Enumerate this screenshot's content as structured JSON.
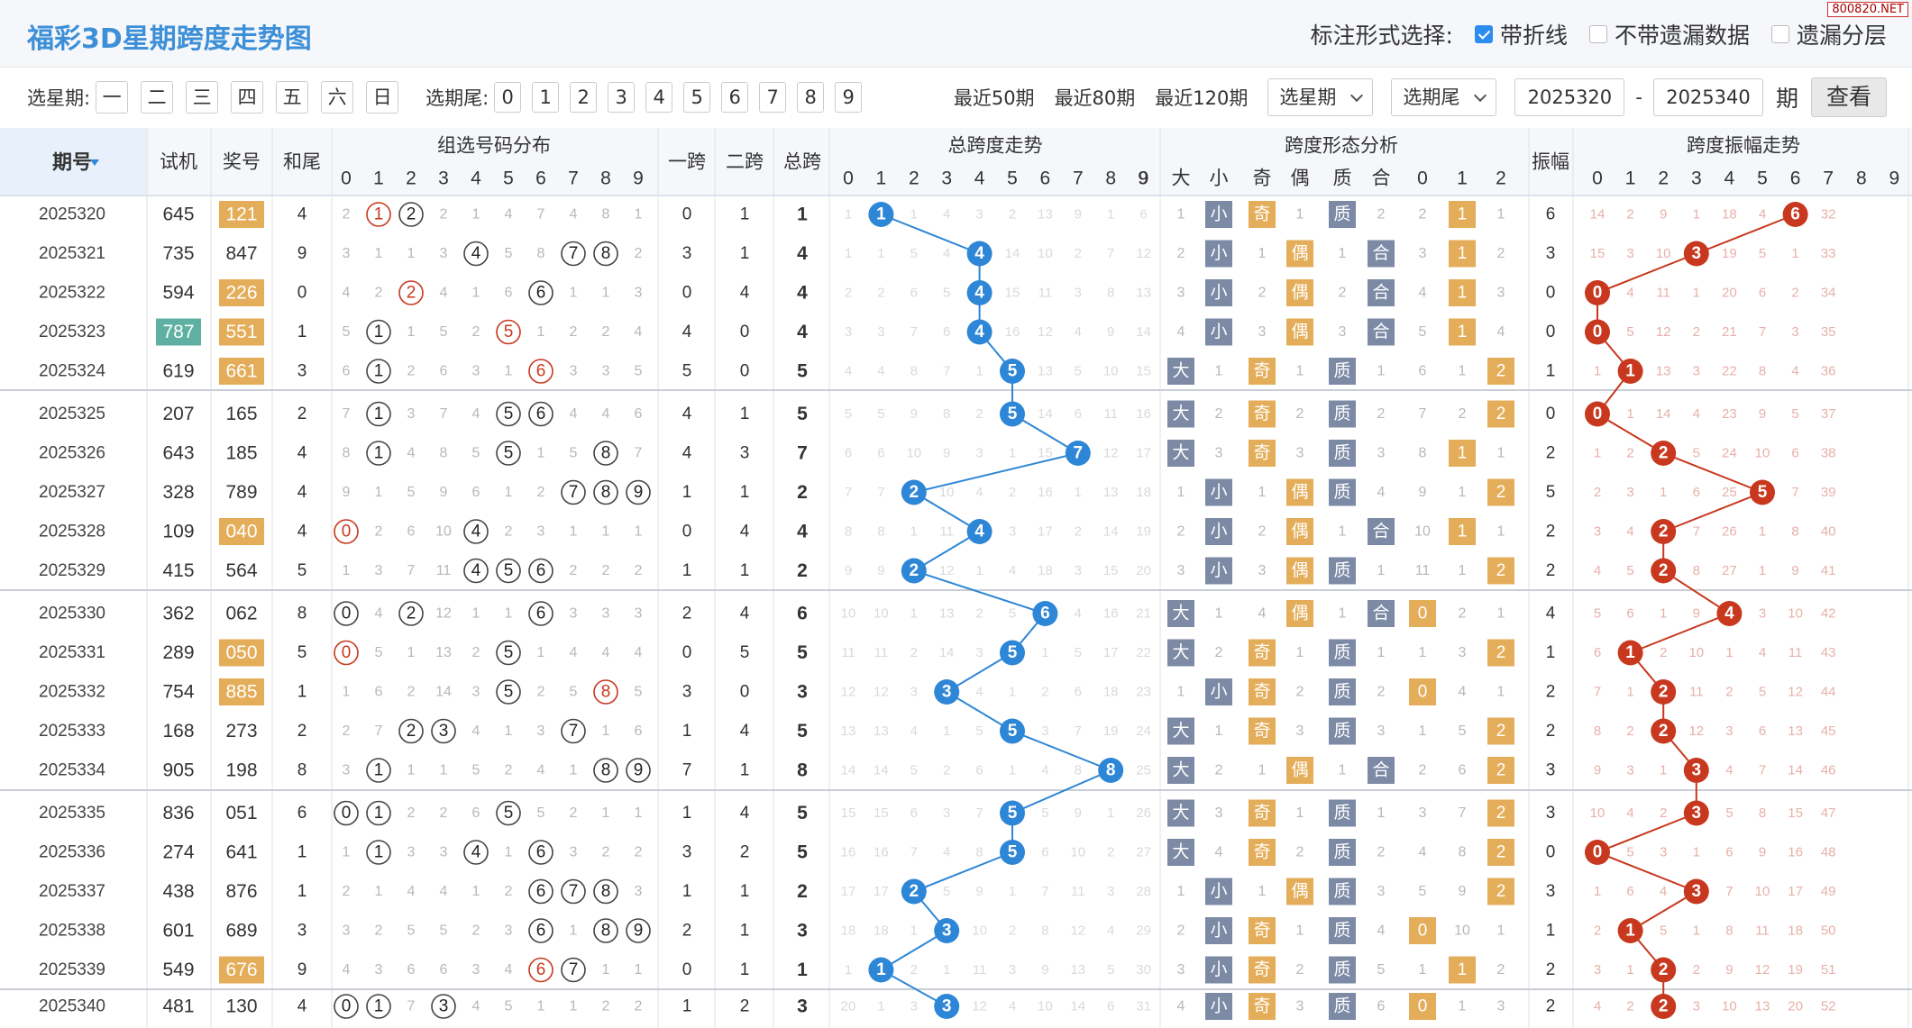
{
  "header": {
    "title": "福彩3D星期跨度走势图",
    "watermark": "800820.NET",
    "mark_label": "标注形式选择:",
    "opt_line": "带折线",
    "opt_nomiss": "不带遗漏数据",
    "opt_layer": "遗漏分层"
  },
  "filters": {
    "week_label": "选星期:",
    "weekdays": [
      "一",
      "二",
      "三",
      "四",
      "五",
      "六",
      "日"
    ],
    "tail_label": "选期尾:",
    "tails": [
      "0",
      "1",
      "2",
      "3",
      "4",
      "5",
      "6",
      "7",
      "8",
      "9"
    ],
    "recent50": "最近50期",
    "recent80": "最近80期",
    "recent120": "最近120期",
    "sel_week": "选星期",
    "sel_tail": "选期尾",
    "start": "2025320",
    "dash": "-",
    "end": "2025340",
    "period": "期",
    "query": "查看"
  },
  "columns": {
    "period": "期号",
    "test": "试机",
    "prize": "奖号",
    "hewei": "和尾",
    "group_dist": "组选号码分布",
    "span1": "一跨",
    "span2": "二跨",
    "total": "总跨",
    "total_trend": "总跨度走势",
    "shape": "跨度形态分析",
    "shape_sub": [
      "大",
      "小",
      "奇",
      "偶",
      "质",
      "合",
      "0",
      "1",
      "2"
    ],
    "amp": "振幅",
    "amp_trend": "跨度振幅走势",
    "digits": [
      "0",
      "1",
      "2",
      "3",
      "4",
      "5",
      "6",
      "7",
      "8",
      "9"
    ]
  },
  "colors": {
    "blue": "#2e86d6",
    "red": "#c8381e",
    "orange": "#e4ad5a",
    "teal": "#5fb0a2",
    "gray": "#7c8aa6",
    "header_bg": "#f5f7fa"
  },
  "rows": [
    {
      "p": "2025320",
      "t": "645",
      "z": "121",
      "zc": "o",
      "hw": 4,
      "d": [
        2,
        "R",
        2,
        "B",
        2,
        1,
        4,
        7,
        4,
        8,
        1
      ],
      "dist": [
        2,
        "R",
        2,
        2,
        1,
        4,
        7,
        4,
        8,
        1
      ],
      "dm": [
        [
          1,
          "R"
        ],
        [
          2,
          "B"
        ]
      ],
      "s1": 0,
      "s2": 1,
      "tot": 1,
      "tt": [
        1,
        1,
        1,
        4,
        3,
        2,
        13,
        9,
        1,
        6,
        11
      ],
      "shape": [
        1,
        "小",
        "奇",
        1,
        "质",
        2,
        2,
        "1",
        1
      ],
      "amp": 6,
      "at": [
        14,
        2,
        9,
        1,
        18,
        4,
        6,
        32,
        "",
        ""
      ]
    },
    {
      "p": "2025321",
      "t": "735",
      "z": "847",
      "zc": "",
      "hw": 9,
      "dist": [
        3,
        1,
        1,
        3,
        4,
        5,
        8,
        7,
        8,
        2
      ],
      "dm": [
        [
          4,
          "B"
        ],
        [
          7,
          "B"
        ],
        [
          8,
          "B"
        ]
      ],
      "s1": 3,
      "s2": 1,
      "tot": 4,
      "tt": [
        1,
        1,
        5,
        4,
        4,
        14,
        10,
        2,
        7,
        12
      ],
      "shape": [
        2,
        "小",
        1,
        "偶",
        1,
        "合",
        3,
        "1",
        2
      ],
      "amp": 3,
      "at": [
        15,
        3,
        10,
        3,
        19,
        5,
        1,
        33,
        "",
        ""
      ]
    },
    {
      "p": "2025322",
      "t": "594",
      "z": "226",
      "zc": "o",
      "hw": 0,
      "dist": [
        4,
        2,
        2,
        4,
        1,
        6,
        6,
        1,
        1,
        3
      ],
      "dm": [
        [
          2,
          "R"
        ],
        [
          6,
          "B"
        ]
      ],
      "s1": 0,
      "s2": 4,
      "tot": 4,
      "tt": [
        2,
        2,
        6,
        5,
        4,
        15,
        11,
        3,
        8,
        13
      ],
      "shape": [
        3,
        "小",
        2,
        "偶",
        2,
        "合",
        4,
        "1",
        3
      ],
      "amp": 0,
      "at": [
        0,
        4,
        11,
        1,
        20,
        6,
        2,
        34,
        "",
        ""
      ]
    },
    {
      "p": "2025323",
      "t": "787",
      "tc": "t",
      "z": "551",
      "zc": "o",
      "hw": 1,
      "dist": [
        5,
        1,
        1,
        5,
        2,
        5,
        1,
        2,
        2,
        4
      ],
      "dm": [
        [
          1,
          "B"
        ],
        [
          5,
          "R"
        ]
      ],
      "s1": 4,
      "s2": 0,
      "tot": 4,
      "tt": [
        3,
        3,
        7,
        6,
        4,
        16,
        12,
        4,
        9,
        14
      ],
      "shape": [
        4,
        "小",
        3,
        "偶",
        3,
        "合",
        5,
        "1",
        4
      ],
      "amp": 0,
      "at": [
        0,
        5,
        12,
        2,
        21,
        7,
        3,
        35,
        "",
        ""
      ]
    },
    {
      "p": "2025324",
      "t": "619",
      "z": "661",
      "zc": "o",
      "hw": 3,
      "dist": [
        6,
        1,
        2,
        6,
        3,
        1,
        6,
        3,
        3,
        5
      ],
      "dm": [
        [
          1,
          "B"
        ],
        [
          6,
          "R"
        ]
      ],
      "s1": 5,
      "s2": 0,
      "tot": 5,
      "tt": [
        4,
        4,
        8,
        7,
        1,
        5,
        13,
        5,
        10,
        15
      ],
      "shape": [
        "大",
        1,
        "奇",
        1,
        "质",
        1,
        6,
        1,
        "2"
      ],
      "amp": 1,
      "at": [
        1,
        1,
        13,
        3,
        22,
        8,
        4,
        36,
        "",
        ""
      ]
    },
    {
      "p": "2025325",
      "t": "207",
      "z": "165",
      "zc": "",
      "hw": 2,
      "dist": [
        7,
        1,
        3,
        7,
        4,
        5,
        6,
        4,
        4,
        6
      ],
      "dm": [
        [
          1,
          "B"
        ],
        [
          5,
          "B"
        ],
        [
          6,
          "B"
        ]
      ],
      "s1": 4,
      "s2": 1,
      "tot": 5,
      "tt": [
        5,
        5,
        9,
        8,
        2,
        5,
        14,
        6,
        11,
        16
      ],
      "shape": [
        "大",
        2,
        "奇",
        2,
        "质",
        2,
        7,
        2,
        "2"
      ],
      "amp": 0,
      "at": [
        0,
        1,
        14,
        4,
        23,
        9,
        5,
        37,
        "",
        ""
      ]
    },
    {
      "p": "2025326",
      "t": "643",
      "z": "185",
      "zc": "",
      "hw": 4,
      "dist": [
        8,
        1,
        4,
        8,
        5,
        5,
        1,
        5,
        8,
        7
      ],
      "dm": [
        [
          1,
          "B"
        ],
        [
          5,
          "B"
        ],
        [
          8,
          "B"
        ]
      ],
      "s1": 4,
      "s2": 3,
      "tot": 7,
      "tt": [
        6,
        6,
        10,
        9,
        3,
        1,
        15,
        7,
        12,
        17
      ],
      "shape": [
        "大",
        3,
        "奇",
        3,
        "质",
        3,
        8,
        "1",
        1
      ],
      "amp": 2,
      "at": [
        1,
        2,
        2,
        5,
        24,
        10,
        6,
        38,
        "",
        ""
      ]
    },
    {
      "p": "2025327",
      "t": "328",
      "z": "789",
      "zc": "",
      "hw": 4,
      "dist": [
        9,
        1,
        5,
        9,
        6,
        1,
        2,
        7,
        8,
        9
      ],
      "dm": [
        [
          7,
          "B"
        ],
        [
          8,
          "B"
        ],
        [
          9,
          "B"
        ]
      ],
      "s1": 1,
      "s2": 1,
      "tot": 2,
      "tt": [
        7,
        7,
        2,
        10,
        4,
        2,
        16,
        1,
        13,
        18
      ],
      "shape": [
        1,
        "小",
        1,
        "偶",
        "质",
        4,
        9,
        1,
        "2"
      ],
      "amp": 5,
      "at": [
        2,
        3,
        1,
        6,
        25,
        5,
        7,
        39,
        "",
        ""
      ]
    },
    {
      "p": "2025328",
      "t": "109",
      "z": "040",
      "zc": "o",
      "hw": 4,
      "dist": [
        0,
        2,
        6,
        10,
        4,
        2,
        3,
        1,
        1,
        1
      ],
      "dm": [
        [
          0,
          "R"
        ],
        [
          4,
          "B"
        ]
      ],
      "s1": 0,
      "s2": 4,
      "tot": 4,
      "tt": [
        8,
        8,
        1,
        11,
        4,
        3,
        17,
        2,
        14,
        19
      ],
      "shape": [
        2,
        "小",
        2,
        "偶",
        1,
        "合",
        10,
        "1",
        1
      ],
      "amp": 2,
      "at": [
        3,
        4,
        2,
        7,
        26,
        1,
        8,
        40,
        "",
        ""
      ]
    },
    {
      "p": "2025329",
      "t": "415",
      "z": "564",
      "zc": "",
      "hw": 5,
      "dist": [
        1,
        3,
        7,
        11,
        4,
        5,
        6,
        2,
        2,
        2
      ],
      "dm": [
        [
          4,
          "B"
        ],
        [
          5,
          "B"
        ],
        [
          6,
          "B"
        ]
      ],
      "s1": 1,
      "s2": 1,
      "tot": 2,
      "tt": [
        9,
        9,
        2,
        12,
        1,
        4,
        18,
        3,
        15,
        20
      ],
      "shape": [
        3,
        "小",
        3,
        "偶",
        "质",
        1,
        11,
        1,
        "2"
      ],
      "amp": 2,
      "at": [
        4,
        5,
        2,
        8,
        27,
        1,
        9,
        41,
        "",
        ""
      ]
    },
    {
      "p": "2025330",
      "t": "362",
      "z": "062",
      "zc": "",
      "hw": 8,
      "dist": [
        0,
        4,
        2,
        12,
        1,
        1,
        6,
        3,
        3,
        3
      ],
      "dm": [
        [
          0,
          "B"
        ],
        [
          2,
          "B"
        ],
        [
          6,
          "B"
        ]
      ],
      "s1": 2,
      "s2": 4,
      "tot": 6,
      "tt": [
        10,
        10,
        1,
        13,
        2,
        5,
        6,
        4,
        16,
        21
      ],
      "shape": [
        "大",
        1,
        4,
        "偶",
        1,
        "合",
        "0",
        2,
        1
      ],
      "amp": 4,
      "at": [
        5,
        6,
        1,
        9,
        4,
        3,
        10,
        42,
        "",
        ""
      ]
    },
    {
      "p": "2025331",
      "t": "289",
      "z": "050",
      "zc": "o",
      "hw": 5,
      "dist": [
        0,
        5,
        1,
        13,
        2,
        5,
        1,
        4,
        4,
        4
      ],
      "dm": [
        [
          0,
          "R"
        ],
        [
          5,
          "B"
        ]
      ],
      "s1": 0,
      "s2": 5,
      "tot": 5,
      "tt": [
        11,
        11,
        2,
        14,
        3,
        5,
        1,
        5,
        17,
        22
      ],
      "shape": [
        "大",
        2,
        "奇",
        1,
        "质",
        1,
        1,
        3,
        "2"
      ],
      "amp": 1,
      "at": [
        6,
        1,
        2,
        10,
        1,
        4,
        11,
        43,
        "",
        ""
      ]
    },
    {
      "p": "2025332",
      "t": "754",
      "z": "885",
      "zc": "o",
      "hw": 1,
      "dist": [
        1,
        6,
        2,
        14,
        3,
        5,
        2,
        5,
        8,
        5
      ],
      "dm": [
        [
          5,
          "B"
        ],
        [
          8,
          "R"
        ]
      ],
      "s1": 3,
      "s2": 0,
      "tot": 3,
      "tt": [
        12,
        12,
        3,
        3,
        4,
        1,
        2,
        6,
        18,
        23
      ],
      "shape": [
        1,
        "小",
        "奇",
        2,
        "质",
        2,
        "0",
        4,
        1
      ],
      "amp": 2,
      "at": [
        7,
        1,
        2,
        11,
        2,
        5,
        12,
        44,
        "",
        ""
      ]
    },
    {
      "p": "2025333",
      "t": "168",
      "z": "273",
      "zc": "",
      "hw": 2,
      "dist": [
        2,
        7,
        2,
        3,
        4,
        1,
        3,
        7,
        1,
        6
      ],
      "dm": [
        [
          2,
          "B"
        ],
        [
          3,
          "B"
        ],
        [
          7,
          "B"
        ]
      ],
      "s1": 1,
      "s2": 4,
      "tot": 5,
      "tt": [
        13,
        13,
        4,
        1,
        5,
        5,
        3,
        7,
        19,
        24
      ],
      "shape": [
        "大",
        1,
        "奇",
        3,
        "质",
        3,
        1,
        5,
        "2"
      ],
      "amp": 2,
      "at": [
        8,
        2,
        2,
        12,
        3,
        6,
        13,
        45,
        "",
        ""
      ]
    },
    {
      "p": "2025334",
      "t": "905",
      "z": "198",
      "zc": "",
      "hw": 8,
      "dist": [
        3,
        1,
        1,
        1,
        5,
        2,
        4,
        1,
        8,
        9
      ],
      "dm": [
        [
          1,
          "B"
        ],
        [
          8,
          "B"
        ],
        [
          9,
          "B"
        ]
      ],
      "s1": 7,
      "s2": 1,
      "tot": 8,
      "tt": [
        14,
        14,
        5,
        2,
        6,
        1,
        4,
        8,
        8,
        25
      ],
      "shape": [
        "大",
        2,
        1,
        "偶",
        1,
        "合",
        2,
        6,
        "2"
      ],
      "amp": 3,
      "at": [
        9,
        3,
        1,
        3,
        4,
        7,
        14,
        46,
        "",
        ""
      ]
    },
    {
      "p": "2025335",
      "t": "836",
      "z": "051",
      "zc": "",
      "hw": 6,
      "dist": [
        0,
        1,
        2,
        2,
        6,
        5,
        5,
        2,
        1,
        1
      ],
      "dm": [
        [
          0,
          "B"
        ],
        [
          1,
          "B"
        ],
        [
          5,
          "B"
        ]
      ],
      "s1": 1,
      "s2": 4,
      "tot": 5,
      "tt": [
        15,
        15,
        6,
        3,
        7,
        5,
        5,
        9,
        1,
        26
      ],
      "shape": [
        "大",
        3,
        "奇",
        1,
        "质",
        1,
        3,
        7,
        "2"
      ],
      "amp": 3,
      "at": [
        10,
        4,
        2,
        3,
        5,
        8,
        15,
        47,
        "",
        ""
      ]
    },
    {
      "p": "2025336",
      "t": "274",
      "z": "641",
      "zc": "",
      "hw": 1,
      "dist": [
        1,
        1,
        3,
        3,
        4,
        1,
        6,
        3,
        2,
        2
      ],
      "dm": [
        [
          1,
          "B"
        ],
        [
          4,
          "B"
        ],
        [
          6,
          "B"
        ]
      ],
      "s1": 3,
      "s2": 2,
      "tot": 5,
      "tt": [
        16,
        16,
        7,
        4,
        8,
        5,
        6,
        10,
        2,
        27
      ],
      "shape": [
        "大",
        4,
        "奇",
        2,
        "质",
        2,
        4,
        8,
        "2"
      ],
      "amp": 0,
      "at": [
        0,
        5,
        3,
        1,
        6,
        9,
        16,
        48,
        "",
        ""
      ]
    },
    {
      "p": "2025337",
      "t": "438",
      "z": "876",
      "zc": "",
      "hw": 1,
      "dist": [
        2,
        1,
        4,
        4,
        1,
        2,
        6,
        7,
        8,
        3
      ],
      "dm": [
        [
          6,
          "B"
        ],
        [
          7,
          "B"
        ],
        [
          8,
          "B"
        ]
      ],
      "s1": 1,
      "s2": 1,
      "tot": 2,
      "tt": [
        17,
        17,
        2,
        5,
        9,
        1,
        7,
        11,
        3,
        28
      ],
      "shape": [
        1,
        "小",
        1,
        "偶",
        "质",
        3,
        5,
        9,
        "2"
      ],
      "amp": 3,
      "at": [
        1,
        6,
        4,
        3,
        7,
        10,
        17,
        49,
        "",
        ""
      ]
    },
    {
      "p": "2025338",
      "t": "601",
      "z": "689",
      "zc": "",
      "hw": 3,
      "dist": [
        3,
        2,
        5,
        5,
        2,
        3,
        6,
        1,
        8,
        9
      ],
      "dm": [
        [
          6,
          "B"
        ],
        [
          8,
          "B"
        ],
        [
          9,
          "B"
        ]
      ],
      "s1": 2,
      "s2": 1,
      "tot": 3,
      "tt": [
        18,
        18,
        1,
        3,
        10,
        2,
        8,
        12,
        4,
        29
      ],
      "shape": [
        2,
        "小",
        "奇",
        1,
        "质",
        4,
        "0",
        10,
        1
      ],
      "amp": 1,
      "at": [
        2,
        1,
        5,
        1,
        8,
        11,
        18,
        50,
        "",
        ""
      ]
    },
    {
      "p": "2025339",
      "t": "549",
      "z": "676",
      "zc": "o",
      "hw": 9,
      "dist": [
        4,
        3,
        6,
        6,
        3,
        4,
        6,
        7,
        1,
        1
      ],
      "dm": [
        [
          6,
          "R"
        ],
        [
          7,
          "B"
        ]
      ],
      "s1": 0,
      "s2": 1,
      "tot": 1,
      "tt": [
        1,
        1,
        2,
        1,
        11,
        3,
        9,
        13,
        5,
        30
      ],
      "shape": [
        3,
        "小",
        "奇",
        2,
        "质",
        5,
        1,
        "1",
        2
      ],
      "amp": 2,
      "at": [
        3,
        1,
        2,
        2,
        9,
        12,
        19,
        51,
        "",
        ""
      ]
    },
    {
      "p": "2025340",
      "t": "481",
      "z": "130",
      "zc": "",
      "hw": 4,
      "dist": [
        0,
        1,
        7,
        3,
        4,
        5,
        1,
        1,
        2,
        2
      ],
      "dm": [
        [
          0,
          "B"
        ],
        [
          1,
          "B"
        ],
        [
          3,
          "B"
        ]
      ],
      "s1": 1,
      "s2": 2,
      "tot": 3,
      "tt": [
        20,
        1,
        3,
        3,
        12,
        4,
        10,
        14,
        6,
        31
      ],
      "shape": [
        4,
        "小",
        "奇",
        3,
        "质",
        6,
        "0",
        1,
        3
      ],
      "amp": 2,
      "at": [
        4,
        2,
        2,
        3,
        10,
        13,
        20,
        52,
        "",
        ""
      ]
    }
  ]
}
